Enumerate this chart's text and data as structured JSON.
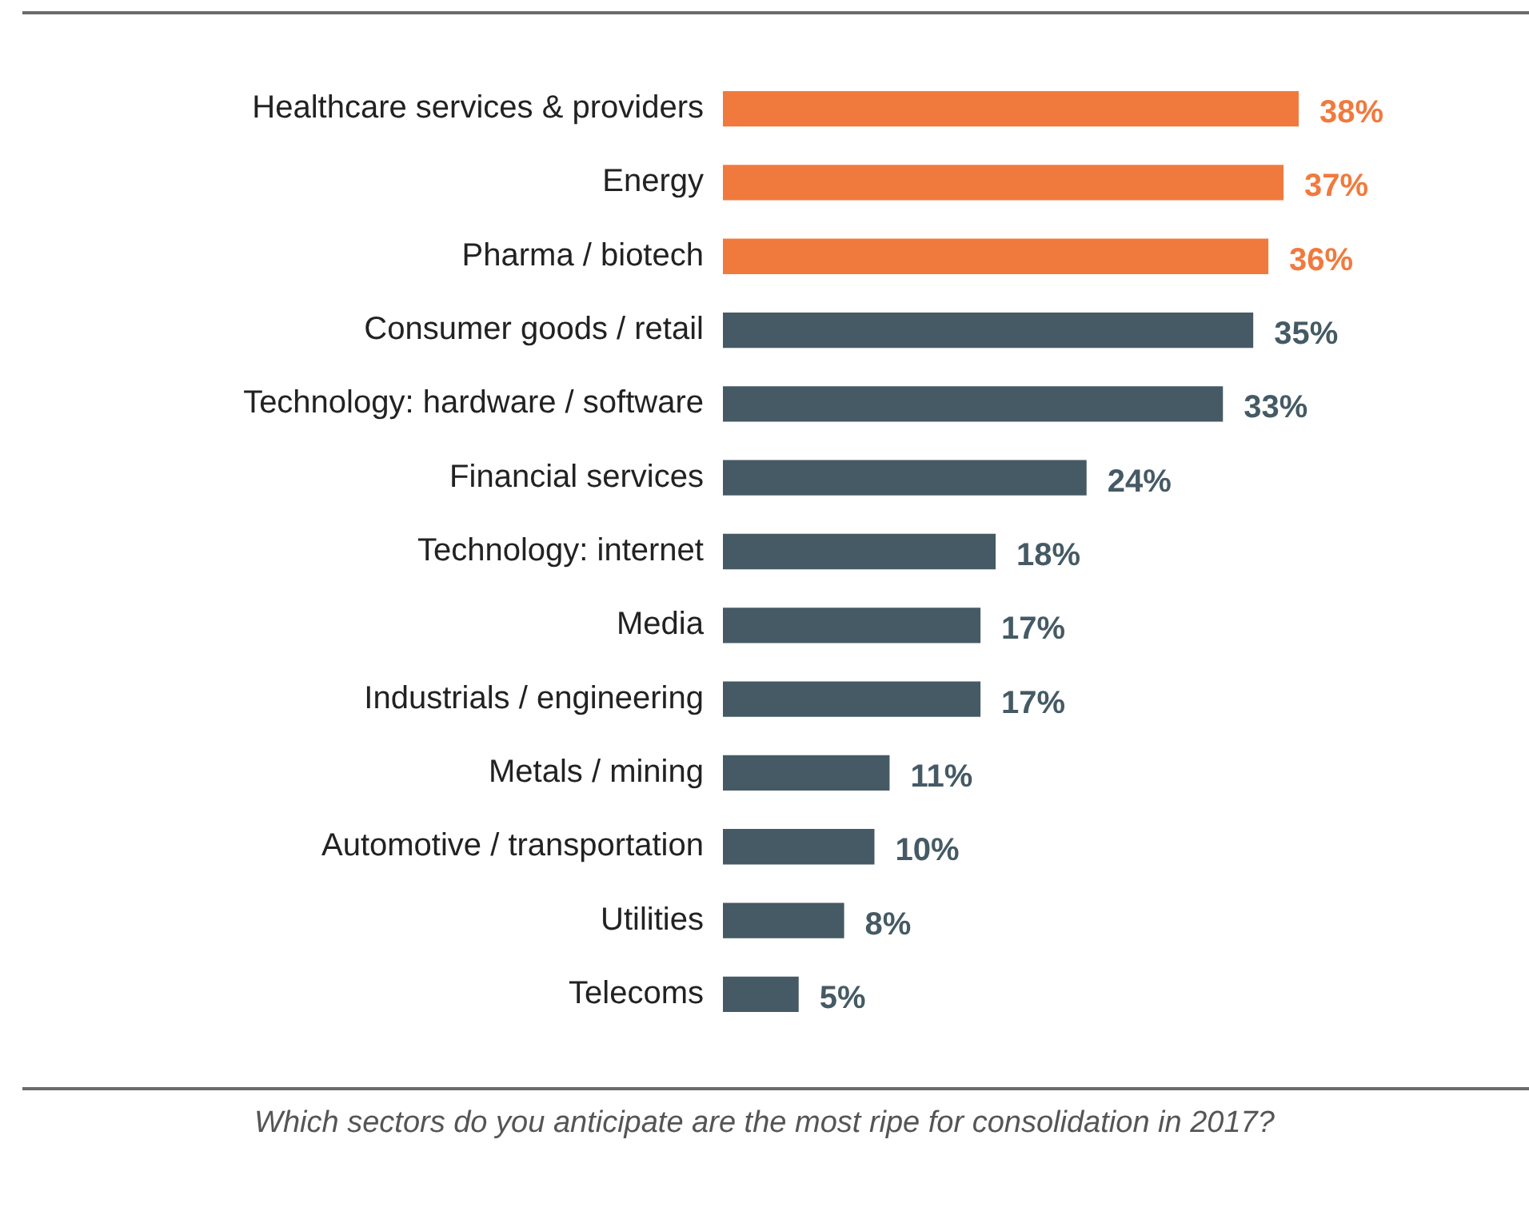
{
  "chart_data": {
    "type": "bar",
    "orientation": "horizontal",
    "categories": [
      "Healthcare services & providers",
      "Energy",
      "Pharma / biotech",
      "Consumer goods / retail",
      "Technology: hardware / software",
      "Financial services",
      "Technology: internet",
      "Media",
      "Industrials / engineering",
      "Metals / mining",
      "Automotive / transportation",
      "Utilities",
      "Telecoms"
    ],
    "values": [
      38,
      37,
      36,
      35,
      33,
      24,
      18,
      17,
      17,
      11,
      10,
      8,
      5
    ],
    "value_labels": [
      "38%",
      "37%",
      "36%",
      "35%",
      "33%",
      "24%",
      "18%",
      "17%",
      "17%",
      "11%",
      "10%",
      "8%",
      "5%"
    ],
    "colors": [
      "#f07a3e",
      "#f07a3e",
      "#f07a3e",
      "#455a64",
      "#455a64",
      "#455a64",
      "#455a64",
      "#455a64",
      "#455a64",
      "#455a64",
      "#455a64",
      "#455a64",
      "#455a64"
    ],
    "tick_labels": "y",
    "legend": false,
    "annotations": [
      "Which sectors do you anticipate are the most ripe for consolidation in 2017?"
    ]
  }
}
